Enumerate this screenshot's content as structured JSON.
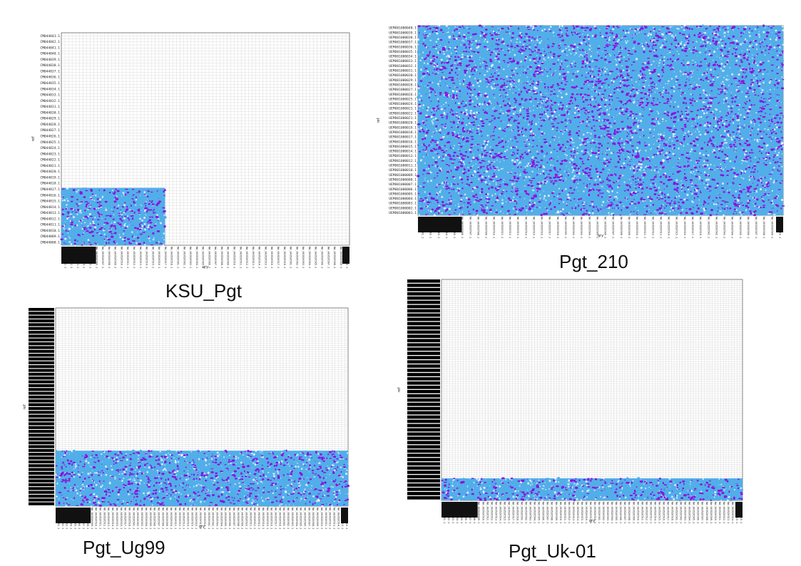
{
  "colors": {
    "grid": "#9a9a9a",
    "label": "#222222",
    "points_primary": "#52aee8",
    "points_secondary": "#8a12e0",
    "background": "#ffffff"
  },
  "chart_data": [
    {
      "type": "scatter",
      "title": "",
      "caption": "KSU_Pgt",
      "xlabel": "qry",
      "ylabel": "ref",
      "y_tick_labels": [
        "CM044843.1",
        "CM044842.1",
        "CM044841.1",
        "CM044840.1",
        "CM044839.1",
        "CM044838.1",
        "CM044837.1",
        "CM044836.1",
        "CM044835.1",
        "CM044834.1",
        "CM044833.1",
        "CM044832.1",
        "CM044831.1",
        "CM044830.1",
        "CM044829.1",
        "CM044828.1",
        "CM044827.1",
        "CM044826.1",
        "CM044825.1",
        "CM044824.1",
        "CM044823.1",
        "CM044822.1",
        "CM044821.1",
        "CM044820.1",
        "CM044819.1",
        "CM044818.1",
        "CM044817.1",
        "CM044816.1",
        "CM044815.1",
        "CM044814.1",
        "CM044813.1",
        "CM044812.1",
        "CM044811.1",
        "CM044810.1",
        "CM044809.1",
        "CM044808.1"
      ],
      "x_tick_labels": [
        "NW_003526501.1",
        "NW_003526502.1",
        "NW_003526503.1",
        "NW_003526504.1",
        "NW_003526505.1",
        "NW_003526506.1",
        "NW_003526507.1",
        "NW_003526508.1",
        "NW_003526509.1",
        "NW_003526510.1",
        "NW_003526511.1",
        "NW_003526512.1",
        "NW_003526513.1",
        "NW_003526514.1",
        "NW_003526515.1",
        "NW_003526516.1",
        "NW_003526517.1",
        "NW_003526518.1"
      ],
      "alignment_block": {
        "x_range": [
          0,
          0.36
        ],
        "y_range": [
          0,
          0.27
        ]
      },
      "series": [
        {
          "values": []
        },
        {
          "values": []
        }
      ],
      "grid": true,
      "legend": "none"
    },
    {
      "type": "scatter",
      "title": "",
      "caption": "Pgt_210",
      "xlabel": "qry",
      "ylabel": "ref",
      "y_tick_labels": [
        "UEMO01000040.1",
        "UEMO01000039.1",
        "UEMO01000038.1",
        "UEMO01000037.1",
        "UEMO01000036.1",
        "UEMO01000035.1",
        "UEMO01000034.1",
        "UEMO01000033.1",
        "UEMO01000032.1",
        "UEMO01000031.1",
        "UEMO01000030.1",
        "UEMO01000029.1",
        "UEMO01000028.1",
        "UEMO01000027.1",
        "UEMO01000026.1",
        "UEMO01000025.1",
        "UEMO01000024.1",
        "UEMO01000023.1",
        "UEMO01000022.1",
        "UEMO01000021.1",
        "UEMO01000020.1",
        "UEMO01000019.1",
        "UEMO01000018.1",
        "UEMO01000017.1",
        "UEMO01000016.1",
        "UEMO01000015.1",
        "UEMO01000014.1",
        "UEMO01000013.1",
        "UEMO01000012.1",
        "UEMO01000011.1",
        "UEMO01000010.1",
        "UEMO01000009.1",
        "UEMO01000008.1",
        "UEMO01000007.1",
        "UEMO01000006.1",
        "UEMO01000005.1",
        "UEMO01000004.1",
        "UEMO01000003.1",
        "UEMO01000002.1",
        "UEMO01000001.1"
      ],
      "x_tick_labels": [
        "NW_003526501.1",
        "NW_003526502.1",
        "NW_003526503.1",
        "NW_003526504.1",
        "NW_003526505.1",
        "NW_003526506.1",
        "NW_003526507.1",
        "NW_003526508.1",
        "NW_003526509.1",
        "NW_003526510.1",
        "NW_003526511.1",
        "NW_003526512.1",
        "NW_003526513.1",
        "NW_003526514.1",
        "NW_003526515.1",
        "NW_003526516.1",
        "NW_003526517.1",
        "NW_003526518.1"
      ],
      "alignment_block": {
        "x_range": [
          0,
          1
        ],
        "y_range": [
          0,
          1
        ]
      },
      "series": [
        {
          "values": []
        },
        {
          "values": []
        }
      ],
      "grid": true,
      "legend": "none"
    },
    {
      "type": "scatter",
      "title": "",
      "caption": "Pgt_Ug99",
      "xlabel": "qry",
      "ylabel": "ref",
      "y_tick_labels": [],
      "x_tick_labels": [
        "NW_003526501.1",
        "NW_003526502.1",
        "NW_003526503.1",
        "NW_003526504.1",
        "NW_003526505.1",
        "NW_003526506.1",
        "NW_003526507.1",
        "NW_003526508.1",
        "NW_003526509.1",
        "NW_003526510.1",
        "NW_003526511.1",
        "NW_003526512.1",
        "NW_003526513.1",
        "NW_003526514.1",
        "NW_003526515.1",
        "NW_003526516.1",
        "NW_003526517.1",
        "NW_003526518.1"
      ],
      "alignment_block": {
        "x_range": [
          0,
          1
        ],
        "y_range": [
          0,
          0.28
        ]
      },
      "series": [
        {
          "values": []
        },
        {
          "values": []
        }
      ],
      "grid": true,
      "legend": "none"
    },
    {
      "type": "scatter",
      "title": "",
      "caption": "Pgt_Uk-01",
      "xlabel": "qry",
      "ylabel": "ref",
      "y_tick_labels": [],
      "x_tick_labels": [
        "NW_003526501.1",
        "NW_003526502.1",
        "NW_003526503.1",
        "NW_003526504.1",
        "NW_003526505.1",
        "NW_003526506.1",
        "NW_003526507.1",
        "NW_003526508.1",
        "NW_003526509.1",
        "NW_003526510.1",
        "NW_003526511.1",
        "NW_003526512.1",
        "NW_003526513.1",
        "NW_003526514.1",
        "NW_003526515.1",
        "NW_003526516.1",
        "NW_003526517.1",
        "NW_003526518.1"
      ],
      "alignment_block": {
        "x_range": [
          0,
          1
        ],
        "y_range": [
          0,
          0.1
        ]
      },
      "series": [
        {
          "values": []
        },
        {
          "values": []
        }
      ],
      "grid": true,
      "legend": "none"
    }
  ]
}
